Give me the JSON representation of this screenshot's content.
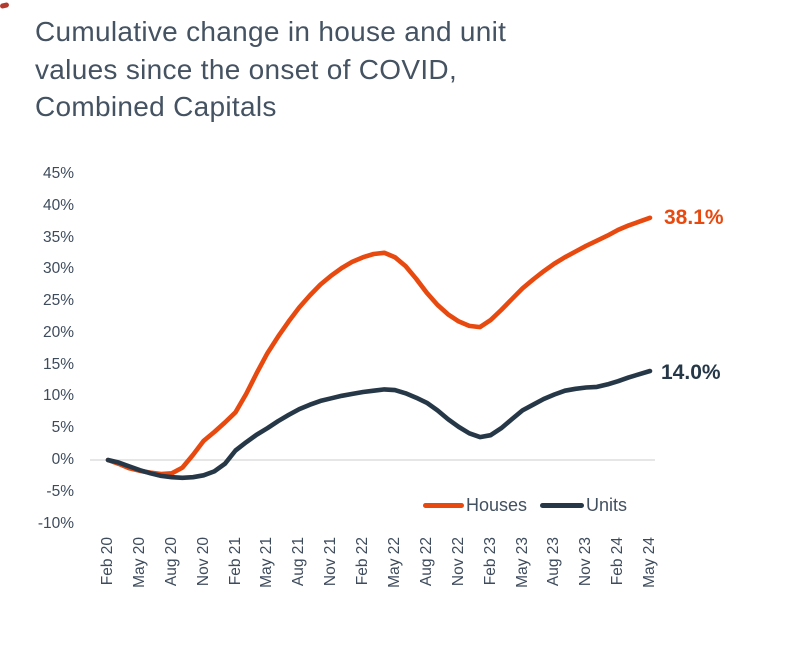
{
  "page": {
    "background": "#ffffff",
    "text_color": "#42505f",
    "corner_mark_color": "#b23a2e"
  },
  "title": {
    "lines": [
      "Cumulative change in house and unit",
      "values since the onset of COVID,",
      "Combined Capitals"
    ],
    "color": "#445262"
  },
  "chart_data": {
    "type": "line",
    "title": "Cumulative change in house and unit values since the onset of COVID, Combined Capitals",
    "interval": "monthly",
    "x_start": "Feb 20",
    "x_end": "May 24",
    "x_tick_labels": [
      "Feb 20",
      "May 20",
      "Aug 20",
      "Nov 20",
      "Feb 21",
      "May 21",
      "Aug 21",
      "Nov 21",
      "Feb 22",
      "May 22",
      "Aug 22",
      "Nov 22",
      "Feb 23",
      "May 23",
      "Aug 23",
      "Nov 23",
      "Feb 24",
      "May 24"
    ],
    "points_per_tick": 3,
    "ylim": [
      -10,
      45
    ],
    "y_ticks": [
      45,
      40,
      35,
      30,
      25,
      20,
      15,
      10,
      5,
      0,
      -5,
      -10
    ],
    "y_tick_labels": [
      "45%",
      "40%",
      "35%",
      "30%",
      "25%",
      "20%",
      "15%",
      "10%",
      "5%",
      "0%",
      "-5%",
      "-10%"
    ],
    "gridline_at": 0,
    "gridline_color": "#d6d6d6",
    "axis_label_color": "#3d4b5c",
    "legend_position": "bottom-right",
    "series": [
      {
        "name": "Houses",
        "color": "#e7490f",
        "end_label": "38.1%",
        "values": [
          0.0,
          -0.6,
          -1.3,
          -1.7,
          -2.0,
          -2.2,
          -2.1,
          -1.2,
          0.8,
          3.0,
          4.4,
          5.9,
          7.5,
          10.4,
          13.7,
          16.8,
          19.4,
          21.8,
          24.0,
          25.9,
          27.6,
          29.0,
          30.2,
          31.2,
          31.9,
          32.4,
          32.6,
          31.9,
          30.5,
          28.5,
          26.3,
          24.4,
          22.9,
          21.8,
          21.1,
          20.9,
          22.0,
          23.6,
          25.3,
          27.0,
          28.4,
          29.7,
          30.9,
          31.9,
          32.8,
          33.7,
          34.5,
          35.3,
          36.2,
          36.9,
          37.5,
          38.1
        ]
      },
      {
        "name": "Units",
        "color": "#263848",
        "end_label": "14.0%",
        "values": [
          0.0,
          -0.4,
          -1.0,
          -1.6,
          -2.1,
          -2.5,
          -2.7,
          -2.8,
          -2.7,
          -2.4,
          -1.8,
          -0.6,
          1.5,
          2.8,
          4.0,
          5.0,
          6.1,
          7.1,
          8.0,
          8.7,
          9.3,
          9.7,
          10.1,
          10.4,
          10.7,
          10.9,
          11.1,
          11.0,
          10.5,
          9.8,
          9.0,
          7.8,
          6.4,
          5.2,
          4.2,
          3.6,
          3.9,
          5.0,
          6.4,
          7.8,
          8.7,
          9.6,
          10.3,
          10.9,
          11.2,
          11.4,
          11.5,
          11.9,
          12.4,
          13.0,
          13.5,
          14.0
        ]
      }
    ]
  },
  "legend": {
    "houses_label": "Houses",
    "units_label": "Units"
  }
}
